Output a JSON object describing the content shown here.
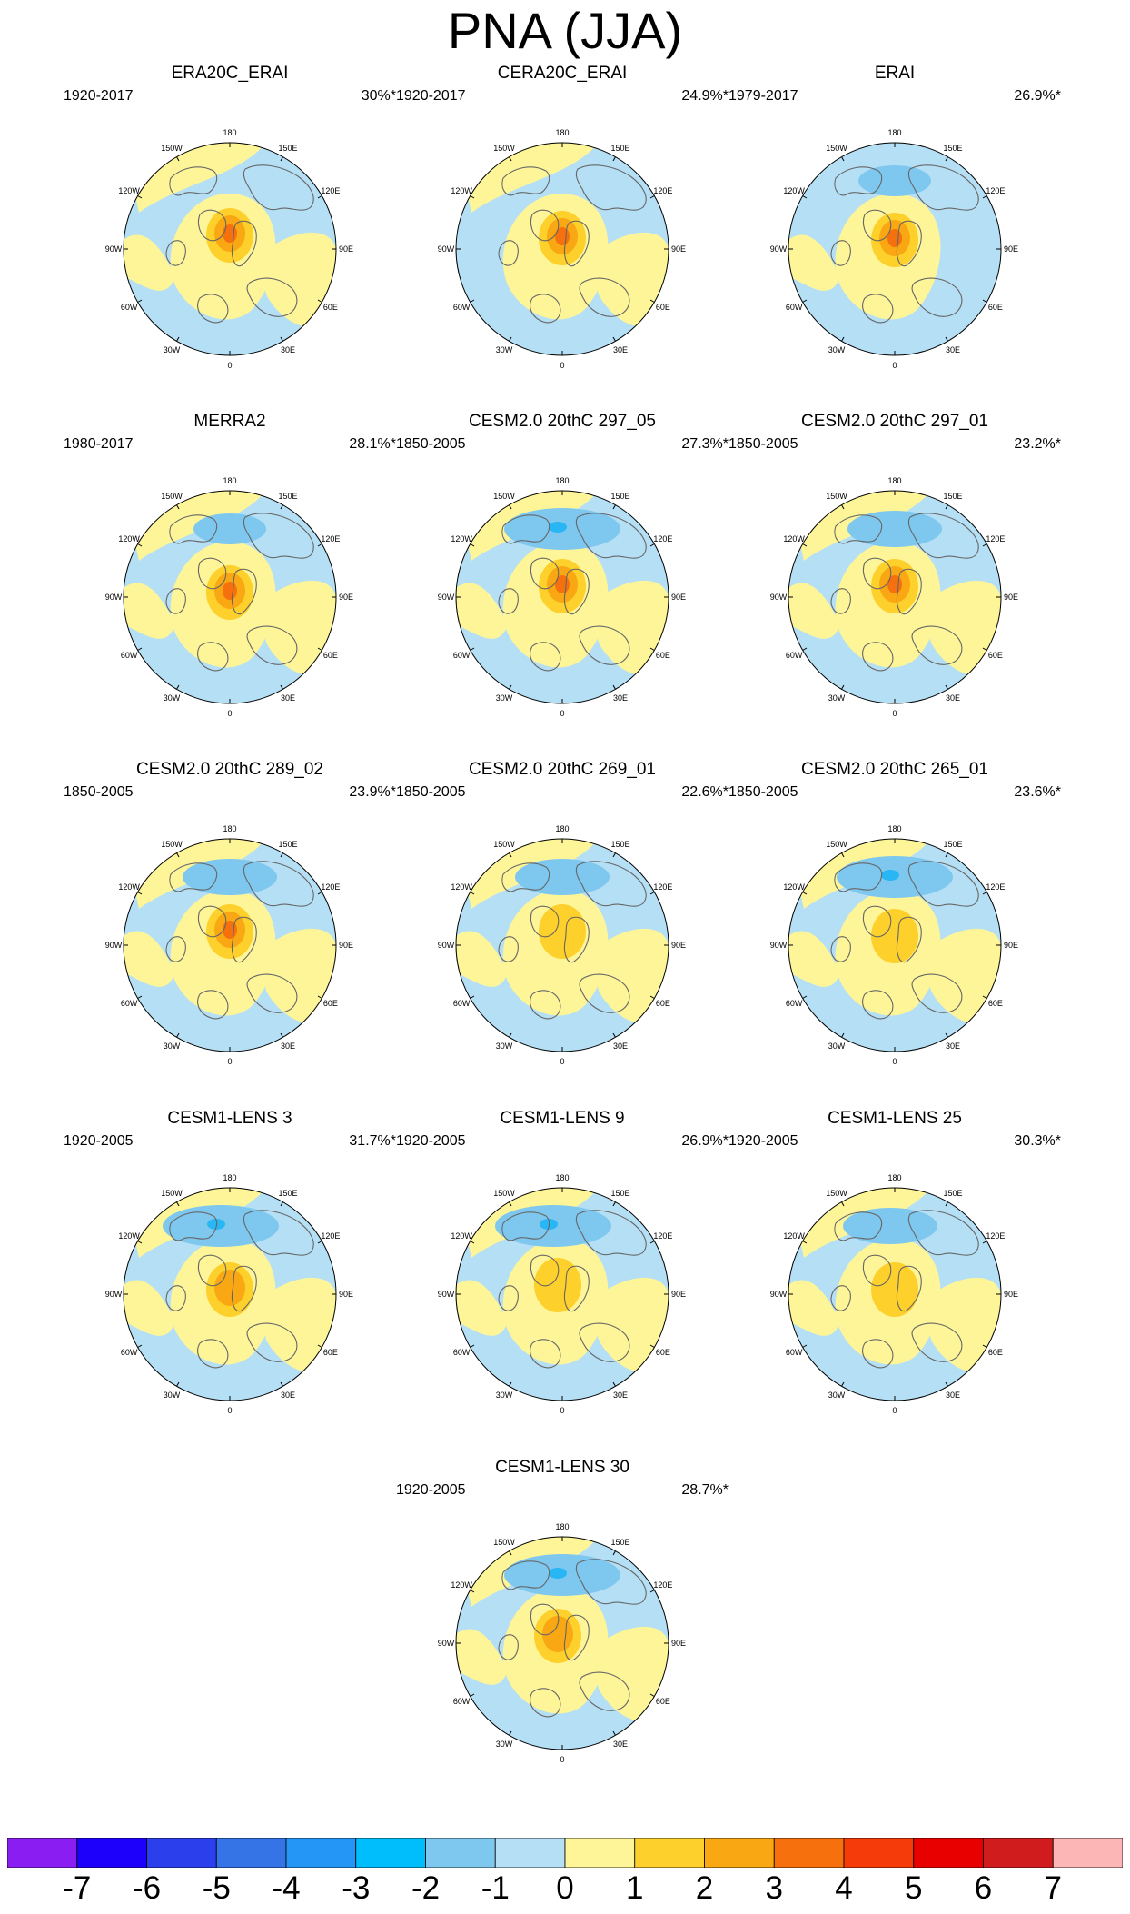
{
  "title": "PNA (JJA)",
  "colors": {
    "land": "#666666",
    "weak_pos": "#fdf598",
    "weak_neg": "#b5dff4",
    "mid_neg": "#7ec7ef",
    "strong_neg": "#28b6f4",
    "pos2": "#fdd02c",
    "pos3": "#f9a713",
    "pos4": "#f6700d"
  },
  "longitude_labels": [
    "180",
    "150E",
    "120E",
    "90E",
    "60E",
    "30E",
    "0",
    "30W",
    "60W",
    "90W",
    "120W",
    "150W"
  ],
  "panels": [
    {
      "title": "ERA20C_ERAI",
      "period": "1920-2017",
      "pct": "30%*",
      "pattern": {
        "pole": 4,
        "pole_dx": 0,
        "pole_dy": -15,
        "trough": 0,
        "trough_dx": 0,
        "yellow_west": 1,
        "yellow_east": 1
      }
    },
    {
      "title": "CERA20C_ERAI",
      "period": "1920-2017",
      "pct": "24.9%*",
      "pattern": {
        "pole": 4,
        "pole_dx": 0,
        "pole_dy": -12,
        "trough": 0,
        "trough_dx": 0,
        "yellow_west": 0,
        "yellow_east": 1
      }
    },
    {
      "title": "ERAI",
      "period": "1979-2017",
      "pct": "26.9%*",
      "pattern": {
        "pole": 4,
        "pole_dx": 0,
        "pole_dy": -10,
        "trough": 1,
        "trough_dx": 0,
        "yellow_west": 1,
        "yellow_east": 0
      }
    },
    {
      "title": "MERRA2",
      "period": "1980-2017",
      "pct": "28.1%*",
      "pattern": {
        "pole": 4,
        "pole_dx": 0,
        "pole_dy": -5,
        "trough": 1,
        "trough_dx": 0,
        "yellow_west": 1,
        "yellow_east": 1
      }
    },
    {
      "title": "CESM2.0 20thC 297_05",
      "period": "1850-2005",
      "pct": "27.3%*",
      "pattern": {
        "pole": 4,
        "pole_dx": 0,
        "pole_dy": -12,
        "trough": 3,
        "trough_dx": 0,
        "yellow_west": 1,
        "yellow_east": 1
      }
    },
    {
      "title": "CESM2.0 20thC 297_01",
      "period": "1850-2005",
      "pct": "23.2%*",
      "pattern": {
        "pole": 4,
        "pole_dx": 0,
        "pole_dy": -12,
        "trough": 2,
        "trough_dx": 0,
        "yellow_west": 1,
        "yellow_east": 1
      }
    },
    {
      "title": "CESM2.0 20thC 289_02",
      "period": "1850-2005",
      "pct": "23.9%*",
      "pattern": {
        "pole": 4,
        "pole_dx": 0,
        "pole_dy": -15,
        "trough": 2,
        "trough_dx": 0,
        "yellow_west": 1,
        "yellow_east": 1
      }
    },
    {
      "title": "CESM2.0 20thC 269_01",
      "period": "1850-2005",
      "pct": "22.6%*",
      "pattern": {
        "pole": 2,
        "pole_dx": 0,
        "pole_dy": -15,
        "trough": 2,
        "trough_dx": 0,
        "yellow_west": 1,
        "yellow_east": 1
      }
    },
    {
      "title": "CESM2.0 20thC 265_01",
      "period": "1850-2005",
      "pct": "23.6%*",
      "pattern": {
        "pole": 2,
        "pole_dx": 0,
        "pole_dy": -10,
        "trough": 3,
        "trough_dx": 0,
        "yellow_west": 1,
        "yellow_east": 1
      }
    },
    {
      "title": "CESM1-LENS 3",
      "period": "1920-2005",
      "pct": "31.7%*",
      "pattern": {
        "pole": 3,
        "pole_dx": 0,
        "pole_dy": -5,
        "trough": 3,
        "trough_dx": -10,
        "yellow_west": 1,
        "yellow_east": 1
      }
    },
    {
      "title": "CESM1-LENS 9",
      "period": "1920-2005",
      "pct": "26.9%*",
      "pattern": {
        "pole": 2,
        "pole_dx": -5,
        "pole_dy": -10,
        "trough": 3,
        "trough_dx": -10,
        "yellow_west": 1,
        "yellow_east": 1
      }
    },
    {
      "title": "CESM1-LENS 25",
      "period": "1920-2005",
      "pct": "30.3%*",
      "pattern": {
        "pole": 2,
        "pole_dx": 0,
        "pole_dy": -5,
        "trough": 2,
        "trough_dx": -5,
        "yellow_west": 1,
        "yellow_east": 1
      }
    },
    {
      "title": "CESM1-LENS 30",
      "period": "1920-2005",
      "pct": "28.7%*",
      "pattern": {
        "pole": 3,
        "pole_dx": -5,
        "pole_dy": -8,
        "trough": 3,
        "trough_dx": 0,
        "yellow_west": 1,
        "yellow_east": 1
      }
    }
  ],
  "colorbar": {
    "colors": [
      "#8a1ef2",
      "#1c00fb",
      "#2c3fed",
      "#3474e6",
      "#2496f6",
      "#00bdfb",
      "#7ec7ef",
      "#b5dff4",
      "#fdf598",
      "#fdd02c",
      "#f9a713",
      "#f6700d",
      "#f53b0a",
      "#e80000",
      "#d01c1c",
      "#fdb6b6"
    ],
    "labels": [
      "-7",
      "-6",
      "-5",
      "-4",
      "-3",
      "-2",
      "-1",
      "0",
      "1",
      "2",
      "3",
      "4",
      "5",
      "6",
      "7"
    ]
  }
}
